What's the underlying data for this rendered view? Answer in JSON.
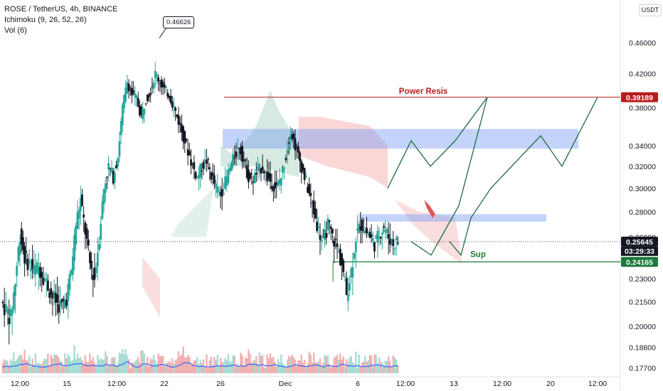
{
  "legend": {
    "symbol": "ROSE / TetherUS, 4h, BINANCE",
    "ichimoku": "Ichimoku (9, 26, 52, 26)",
    "volume": "Vol (6)"
  },
  "currency": "USDT",
  "colors": {
    "up": "#26a69a",
    "down": "#131722",
    "resistance": "#b71c1c",
    "support": "#1b7a3a",
    "zone_blue": "#7b9ef5",
    "cloud_green": "#b7d9c9",
    "cloud_red": "#f4b6b6",
    "volume_ma": "#2962ff",
    "projection": "#1e6b3f",
    "price_tag_dark": "#131722"
  },
  "callout": {
    "label": "0.46626",
    "price": 0.46626
  },
  "annotations": {
    "power_resis_label": "Power Resis",
    "sup_label": "Sup"
  },
  "price_tags": {
    "resistance": "0.39189",
    "current": "0.25645",
    "countdown": "03:29:33",
    "support": "0.24165"
  },
  "chart_data": {
    "type": "candlestick",
    "yaxis_ticks": [
      "0.46000",
      "0.42000",
      "0.38000",
      "0.34000",
      "0.32000",
      "0.30000",
      "0.28000",
      "0.26000",
      "0.23000",
      "0.21500",
      "0.20000",
      "0.18800",
      "0.17700"
    ],
    "xaxis_ticks": [
      "12:00",
      "15",
      "12:00",
      "22",
      "26",
      "Dec",
      "6",
      "12:00",
      "13",
      "12:00",
      "20",
      "12:00"
    ],
    "log_scale": true,
    "levels": {
      "power_resistance": 0.39189,
      "support": 0.24165,
      "current_price": 0.25645,
      "high": 0.46626
    },
    "zones": [
      {
        "name": "upper-supply-zone",
        "from": 0.337,
        "to": 0.357
      },
      {
        "name": "minor-resistance-zone",
        "from": 0.272,
        "to": 0.278
      }
    ],
    "close_path": [
      0.215,
      0.21,
      0.205,
      0.228,
      0.262,
      0.245,
      0.24,
      0.236,
      0.238,
      0.232,
      0.225,
      0.218,
      0.214,
      0.212,
      0.218,
      0.235,
      0.27,
      0.29,
      0.264,
      0.24,
      0.23,
      0.26,
      0.3,
      0.32,
      0.31,
      0.33,
      0.38,
      0.41,
      0.395,
      0.39,
      0.37,
      0.39,
      0.4,
      0.42,
      0.41,
      0.4,
      0.395,
      0.38,
      0.365,
      0.35,
      0.335,
      0.32,
      0.31,
      0.32,
      0.325,
      0.312,
      0.3,
      0.295,
      0.305,
      0.318,
      0.33,
      0.34,
      0.325,
      0.31,
      0.308,
      0.315,
      0.32,
      0.31,
      0.305,
      0.3,
      0.31,
      0.33,
      0.355,
      0.34,
      0.325,
      0.31,
      0.295,
      0.28,
      0.265,
      0.255,
      0.27,
      0.26,
      0.252,
      0.24,
      0.22,
      0.235,
      0.26,
      0.27,
      0.265,
      0.26,
      0.255,
      0.262,
      0.268,
      0.26,
      0.255,
      0.2565
    ],
    "projection_paths": [
      [
        0.2565,
        0.2465,
        0.3,
        0.345,
        0.32,
        0.36,
        0.39189
      ],
      [
        0.2565,
        0.2465,
        0.275,
        0.26,
        0.28,
        0.3,
        0.35,
        0.32,
        0.39189
      ]
    ]
  }
}
